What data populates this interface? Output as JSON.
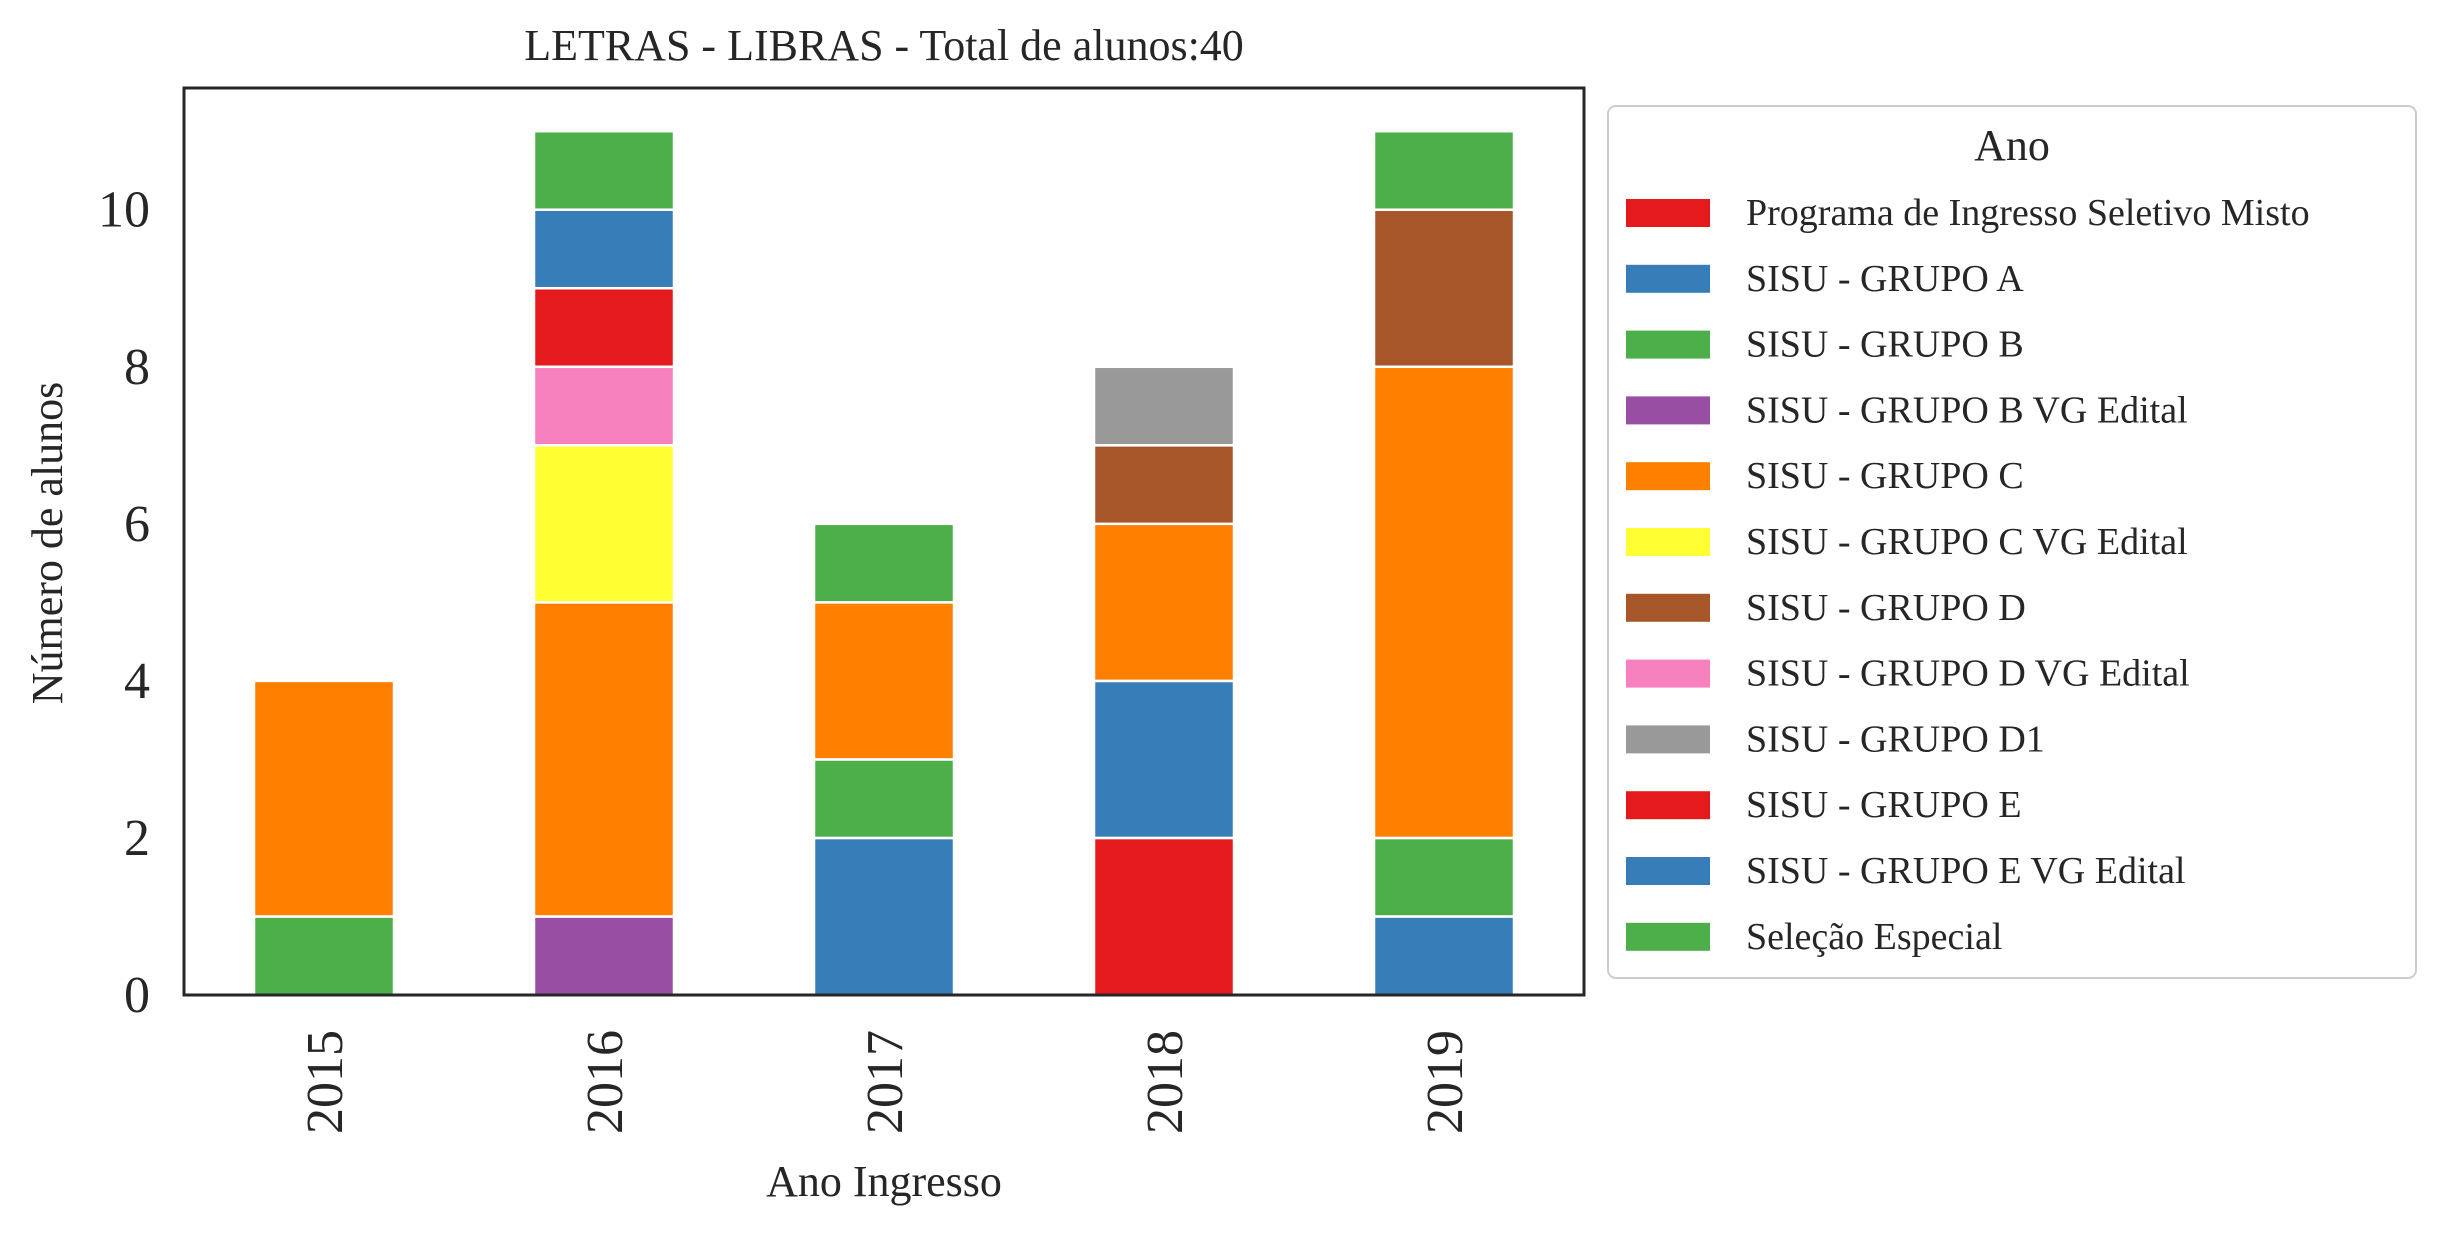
{
  "chart_data": {
    "type": "bar",
    "stacked": true,
    "title": "LETRAS - LIBRAS - Total de alunos:40",
    "xlabel": "Ano Ingresso",
    "ylabel": "Número de alunos",
    "categories": [
      "2015",
      "2016",
      "2017",
      "2018",
      "2019"
    ],
    "ylim": [
      0,
      11.55
    ],
    "yticks": [
      "0",
      "2",
      "4",
      "6",
      "8",
      "10"
    ],
    "grid": false,
    "legend": {
      "title": "Ano",
      "placement": "outside-right"
    },
    "series": [
      {
        "name": "Programa de Ingresso Seletivo Misto",
        "color": "#e41a1c",
        "values": [
          0,
          0,
          0,
          2,
          0
        ]
      },
      {
        "name": "SISU - GRUPO A",
        "color": "#377eb8",
        "values": [
          0,
          0,
          2,
          2,
          1
        ]
      },
      {
        "name": "SISU - GRUPO B",
        "color": "#4daf4a",
        "values": [
          1,
          0,
          1,
          0,
          1
        ]
      },
      {
        "name": "SISU - GRUPO B VG Edital",
        "color": "#984ea3",
        "values": [
          0,
          1,
          0,
          0,
          0
        ]
      },
      {
        "name": "SISU - GRUPO C",
        "color": "#ff7f00",
        "values": [
          3,
          4,
          2,
          2,
          6
        ]
      },
      {
        "name": "SISU - GRUPO C VG Edital",
        "color": "#ffff33",
        "values": [
          0,
          2,
          0,
          0,
          0
        ]
      },
      {
        "name": "SISU - GRUPO D",
        "color": "#a65628",
        "values": [
          0,
          0,
          0,
          1,
          2
        ]
      },
      {
        "name": "SISU - GRUPO D VG Edital",
        "color": "#f781bf",
        "values": [
          0,
          1,
          0,
          0,
          0
        ]
      },
      {
        "name": "SISU - GRUPO D1",
        "color": "#999999",
        "values": [
          0,
          0,
          0,
          1,
          0
        ]
      },
      {
        "name": "SISU - GRUPO E",
        "color": "#e41a1c",
        "values": [
          0,
          1,
          0,
          0,
          0
        ]
      },
      {
        "name": "SISU - GRUPO E VG Edital",
        "color": "#377eb8",
        "values": [
          0,
          1,
          0,
          0,
          0
        ]
      },
      {
        "name": "Seleção Especial",
        "color": "#4daf4a",
        "values": [
          0,
          1,
          1,
          0,
          1
        ]
      }
    ]
  }
}
